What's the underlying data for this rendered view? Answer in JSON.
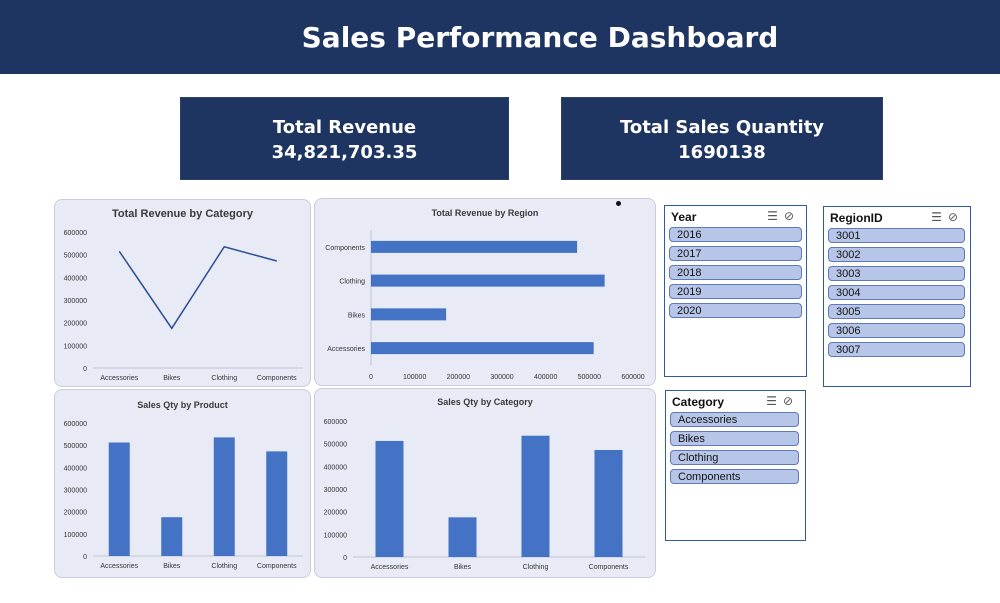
{
  "header": {
    "title": "Sales Performance Dashboard"
  },
  "kpis": {
    "revenue": {
      "label": "Total Revenue",
      "value": "34,821,703.35"
    },
    "quantity": {
      "label": "Total Sales Quantity",
      "value": "1690138"
    }
  },
  "colors": {
    "header": "#1e3461",
    "bar": "#4472c4",
    "line": "#2c4f94",
    "panel": "#e8ebf6"
  },
  "charts": {
    "rev_by_category": {
      "title": "Total Revenue by Category",
      "type": "line",
      "categories": [
        "Accessories",
        "Bikes",
        "Clothing",
        "Components"
      ],
      "values": [
        515000,
        175000,
        535000,
        472000
      ],
      "ylim": [
        0,
        600000
      ],
      "yticks": [
        "0",
        "100000",
        "200000",
        "300000",
        "400000",
        "500000",
        "600000"
      ]
    },
    "rev_by_region": {
      "title": "Total Revenue by Region",
      "type": "bar",
      "categories": [
        "Components",
        "Clothing",
        "Bikes",
        "Accessories"
      ],
      "values": [
        472000,
        535000,
        172000,
        510000
      ],
      "xlim": [
        0,
        600000
      ],
      "xticks": [
        "0",
        "100000",
        "200000",
        "300000",
        "400000",
        "500000",
        "600000"
      ]
    },
    "qty_by_product": {
      "title": "Sales Qty by Product",
      "type": "bar",
      "categories": [
        "Accessories",
        "Bikes",
        "Clothing",
        "Components"
      ],
      "values": [
        512000,
        175000,
        535000,
        472000
      ],
      "ylim": [
        0,
        600000
      ],
      "yticks": [
        "0",
        "100000",
        "200000",
        "300000",
        "400000",
        "500000",
        "600000"
      ]
    },
    "qty_by_category": {
      "title": "Sales Qty by Category",
      "type": "bar",
      "categories": [
        "Accessories",
        "Bikes",
        "Clothing",
        "Components"
      ],
      "values": [
        512000,
        175000,
        535000,
        472000
      ],
      "ylim": [
        0,
        600000
      ],
      "yticks": [
        "0",
        "100000",
        "200000",
        "300000",
        "400000",
        "500000",
        "600000"
      ]
    }
  },
  "chart_data": [
    {
      "type": "line",
      "title": "Total Revenue by Category",
      "categories": [
        "Accessories",
        "Bikes",
        "Clothing",
        "Components"
      ],
      "values": [
        515000,
        175000,
        535000,
        472000
      ],
      "ylim": [
        0,
        600000
      ]
    },
    {
      "type": "bar",
      "title": "Total Revenue by Region",
      "categories": [
        "Components",
        "Clothing",
        "Bikes",
        "Accessories"
      ],
      "values": [
        472000,
        535000,
        172000,
        510000
      ],
      "xlim": [
        0,
        600000
      ]
    },
    {
      "type": "bar",
      "title": "Sales Qty by Product",
      "categories": [
        "Accessories",
        "Bikes",
        "Clothing",
        "Components"
      ],
      "values": [
        512000,
        175000,
        535000,
        472000
      ],
      "ylim": [
        0,
        600000
      ]
    },
    {
      "type": "bar",
      "title": "Sales Qty by Category",
      "categories": [
        "Accessories",
        "Bikes",
        "Clothing",
        "Components"
      ],
      "values": [
        512000,
        175000,
        535000,
        472000
      ],
      "ylim": [
        0,
        600000
      ]
    }
  ],
  "slicers": {
    "year": {
      "title": "Year",
      "items": [
        "2016",
        "2017",
        "2018",
        "2019",
        "2020"
      ]
    },
    "region": {
      "title": "RegionID",
      "items": [
        "3001",
        "3002",
        "3003",
        "3004",
        "3005",
        "3006",
        "3007"
      ]
    },
    "category": {
      "title": "Category",
      "items": [
        "Accessories",
        "Bikes",
        "Clothing",
        "Components"
      ]
    },
    "icons": {
      "multi_select": "multi-select-icon",
      "clear_filter": "clear-filter-icon"
    }
  }
}
